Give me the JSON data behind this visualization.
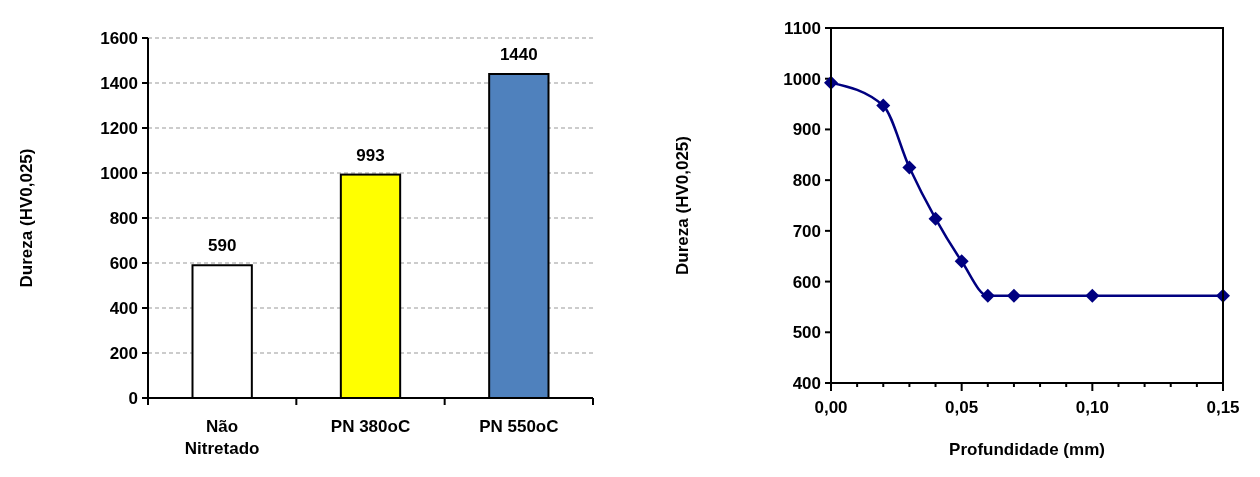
{
  "chart_data": [
    {
      "type": "bar",
      "ylabel": "Dureza (HV0,025)",
      "categories": [
        "Não Nitretado",
        "PN 380oC",
        "PN 550oC"
      ],
      "values": [
        590,
        993,
        1440
      ],
      "colors": [
        "#ffffff",
        "#ffff00",
        "#4f81bd"
      ],
      "ylim": [
        0,
        1600
      ],
      "yticks": [
        0,
        200,
        400,
        600,
        800,
        1000,
        1200,
        1400,
        1600
      ],
      "grid": "y",
      "data_labels": true
    },
    {
      "type": "line",
      "xlabel": "Profundidade (mm)",
      "ylabel": "Dureza (HV0,025)",
      "x": [
        0,
        0.02,
        0.03,
        0.04,
        0.05,
        0.06,
        0.07,
        0.1,
        0.15
      ],
      "series": [
        {
          "color": "#000080",
          "values": [
            992,
            947,
            825,
            724,
            640,
            572,
            572,
            572,
            572
          ]
        }
      ],
      "xlim": [
        0,
        0.15
      ],
      "xticks": [
        {
          "value": 0,
          "label": "0,00"
        },
        {
          "value": 0.01,
          "label": null
        },
        {
          "value": 0.02,
          "label": null
        },
        {
          "value": 0.03,
          "label": null
        },
        {
          "value": 0.04,
          "label": null
        },
        {
          "value": 0.05,
          "label": "0,05"
        },
        {
          "value": 0.06,
          "label": null
        },
        {
          "value": 0.07,
          "label": null
        },
        {
          "value": 0.08,
          "label": null
        },
        {
          "value": 0.09,
          "label": null
        },
        {
          "value": 0.1,
          "label": "0,10"
        },
        {
          "value": 0.11,
          "label": null
        },
        {
          "value": 0.12,
          "label": null
        },
        {
          "value": 0.13,
          "label": null
        },
        {
          "value": 0.14,
          "label": null
        },
        {
          "value": 0.15,
          "label": "0,15"
        }
      ],
      "ylim": [
        400,
        1100
      ],
      "yticks": [
        400,
        500,
        600,
        700,
        800,
        900,
        1000,
        1100
      ],
      "marker": "diamond",
      "line_style": "solid",
      "grid": false
    }
  ]
}
